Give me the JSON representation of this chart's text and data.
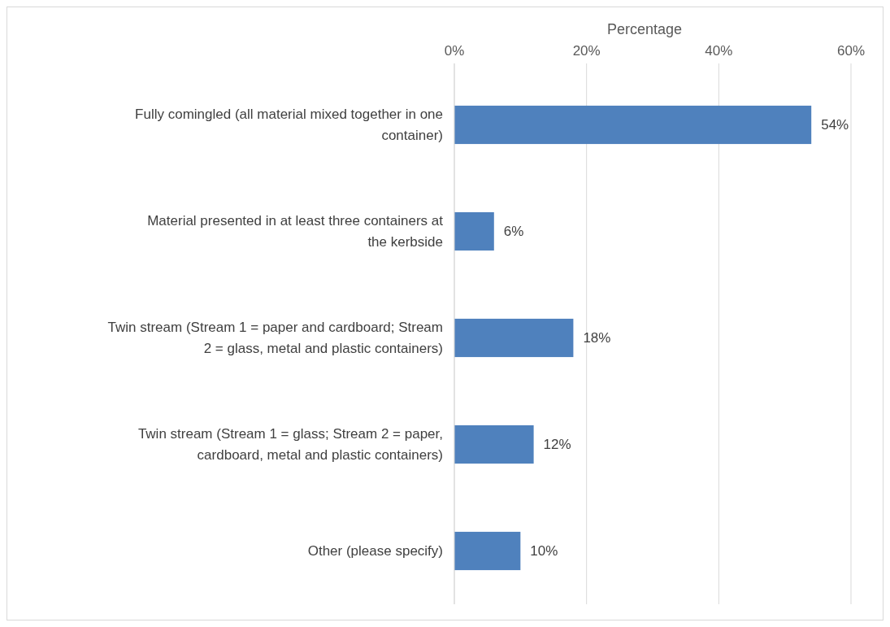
{
  "chart_data": {
    "type": "bar",
    "orientation": "horizontal",
    "xlabel": "Percentage",
    "categories": [
      "Fully comingled (all material mixed together in one container)",
      "Material presented in at least three containers at the kerbside",
      "Twin stream (Stream 1 = paper and cardboard; Stream 2 = glass, metal and plastic containers)",
      "Twin stream (Stream 1 = glass; Stream 2 = paper, cardboard, metal and plastic containers)",
      "Other (please specify)"
    ],
    "values": [
      54,
      6,
      18,
      12,
      10
    ],
    "value_labels": [
      "54%",
      "6%",
      "18%",
      "12%",
      "10%"
    ],
    "color": "#4f81bd",
    "xlim": [
      0,
      60
    ],
    "xticks": [
      {
        "value": 0,
        "label": "0%"
      },
      {
        "value": 20,
        "label": "20%"
      },
      {
        "value": 40,
        "label": "40%"
      },
      {
        "value": 60,
        "label": "60%"
      }
    ],
    "grid": "x"
  }
}
